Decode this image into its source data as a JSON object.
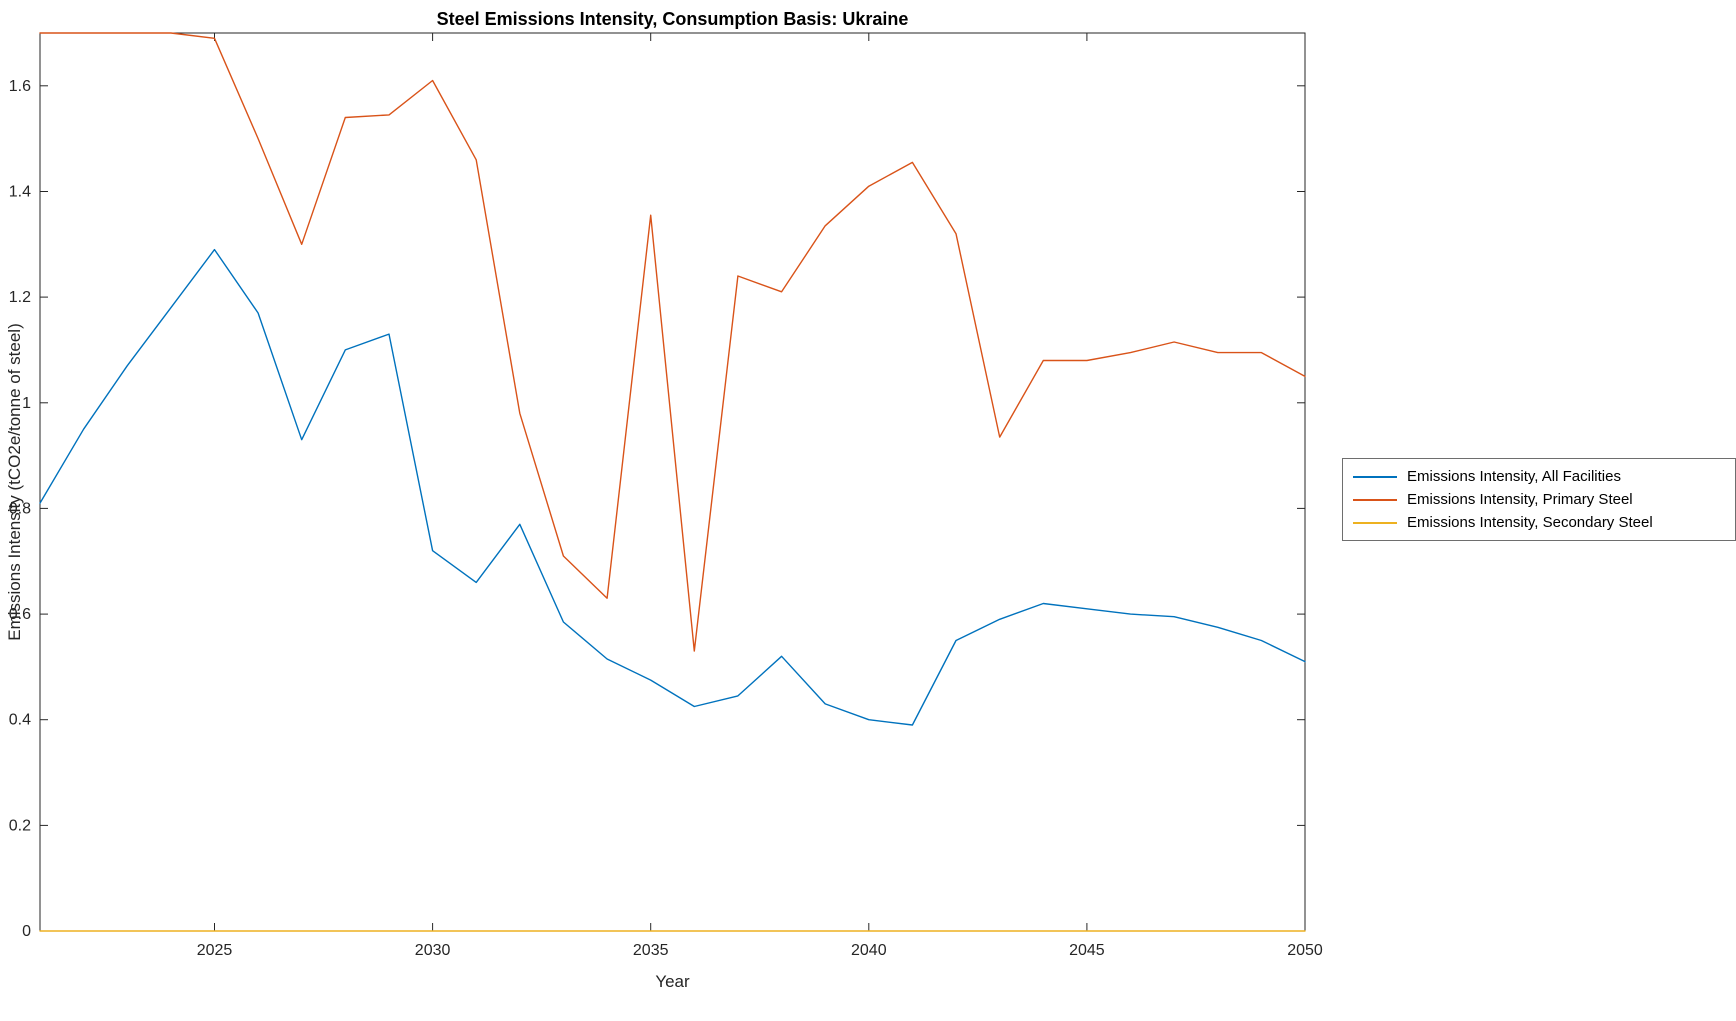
{
  "figure": {
    "title": "Steel Emissions Intensity, Consumption Basis: Ukraine",
    "xlabel": "Year",
    "ylabel": "Emissions Intensity (tCO2e/tonne of steel)"
  },
  "chart_data": {
    "type": "line",
    "title": "Steel Emissions Intensity, Consumption Basis: Ukraine",
    "xlabel": "Year",
    "ylabel": "Emissions Intensity (tCO2e/tonne of steel)",
    "x": [
      2021,
      2022,
      2023,
      2024,
      2025,
      2026,
      2027,
      2028,
      2029,
      2030,
      2031,
      2032,
      2033,
      2034,
      2035,
      2036,
      2037,
      2038,
      2039,
      2040,
      2041,
      2042,
      2043,
      2044,
      2045,
      2046,
      2047,
      2048,
      2049,
      2050
    ],
    "series": [
      {
        "name": "Emissions Intensity, All Facilities",
        "color": "#0072BD",
        "values": [
          0.81,
          0.95,
          1.07,
          1.18,
          1.29,
          1.17,
          0.93,
          1.1,
          1.13,
          0.72,
          0.66,
          0.77,
          0.585,
          0.515,
          0.475,
          0.425,
          0.445,
          0.52,
          0.43,
          0.4,
          0.39,
          0.55,
          0.59,
          0.62,
          0.61,
          0.6,
          0.595,
          0.575,
          0.55,
          0.51
        ]
      },
      {
        "name": "Emissions Intensity, Primary Steel",
        "color": "#D95319",
        "values": [
          1.7,
          1.7,
          1.7,
          1.7,
          1.69,
          1.5,
          1.3,
          1.54,
          1.545,
          1.61,
          1.46,
          0.98,
          0.71,
          0.63,
          1.355,
          0.53,
          1.24,
          1.21,
          1.335,
          1.41,
          1.455,
          1.32,
          0.935,
          1.08,
          1.08,
          1.095,
          1.115,
          1.095,
          1.095,
          1.05
        ]
      },
      {
        "name": "Emissions Intensity, Secondary Steel",
        "color": "#EDB120",
        "values": [
          0,
          0,
          0,
          0,
          0,
          0,
          0,
          0,
          0,
          0,
          0,
          0,
          0,
          0,
          0,
          0,
          0,
          0,
          0,
          0,
          0,
          0,
          0,
          0,
          0,
          0,
          0,
          0,
          0,
          0
        ]
      }
    ],
    "xlim": [
      2021,
      2050
    ],
    "ylim": [
      0,
      1.7
    ],
    "xticks": [
      2025,
      2030,
      2035,
      2040,
      2045,
      2050
    ],
    "yticks": [
      0,
      0.2,
      0.4,
      0.6,
      0.8,
      1,
      1.2,
      1.4,
      1.6
    ],
    "grid": false,
    "legend_position": "right-outside",
    "axis_color": "#262626"
  }
}
